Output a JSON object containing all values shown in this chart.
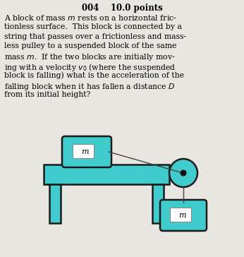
{
  "bg_color": "#e8e6e0",
  "teal_color": "#40cccc",
  "outline_color": "#1a1a1a",
  "title_text": "004    10.0 points",
  "label_m": "m",
  "figsize": [
    3.46,
    3.64
  ],
  "dpi": 100,
  "text_lines": [
    "A block of mass m rests on a horizontal fric-",
    "tionless surface.  This block is connected by a",
    "string that passes over a frictionless and mass-",
    "less pulley to a suspended block of the same",
    "mass m.  If the two blocks are initially mov-",
    "ing with a velocity v₀ (where the suspended",
    "block is falling) what is the acceleration of the",
    "falling block when it has fallen a distance D",
    "from its initial height?"
  ],
  "italic_words": {
    "line0": [
      [
        18,
        19
      ]
    ],
    "line4": [
      [
        5,
        6
      ]
    ],
    "line5": [
      [
        5,
        6
      ]
    ],
    "line7": [
      [
        10,
        11
      ]
    ]
  }
}
